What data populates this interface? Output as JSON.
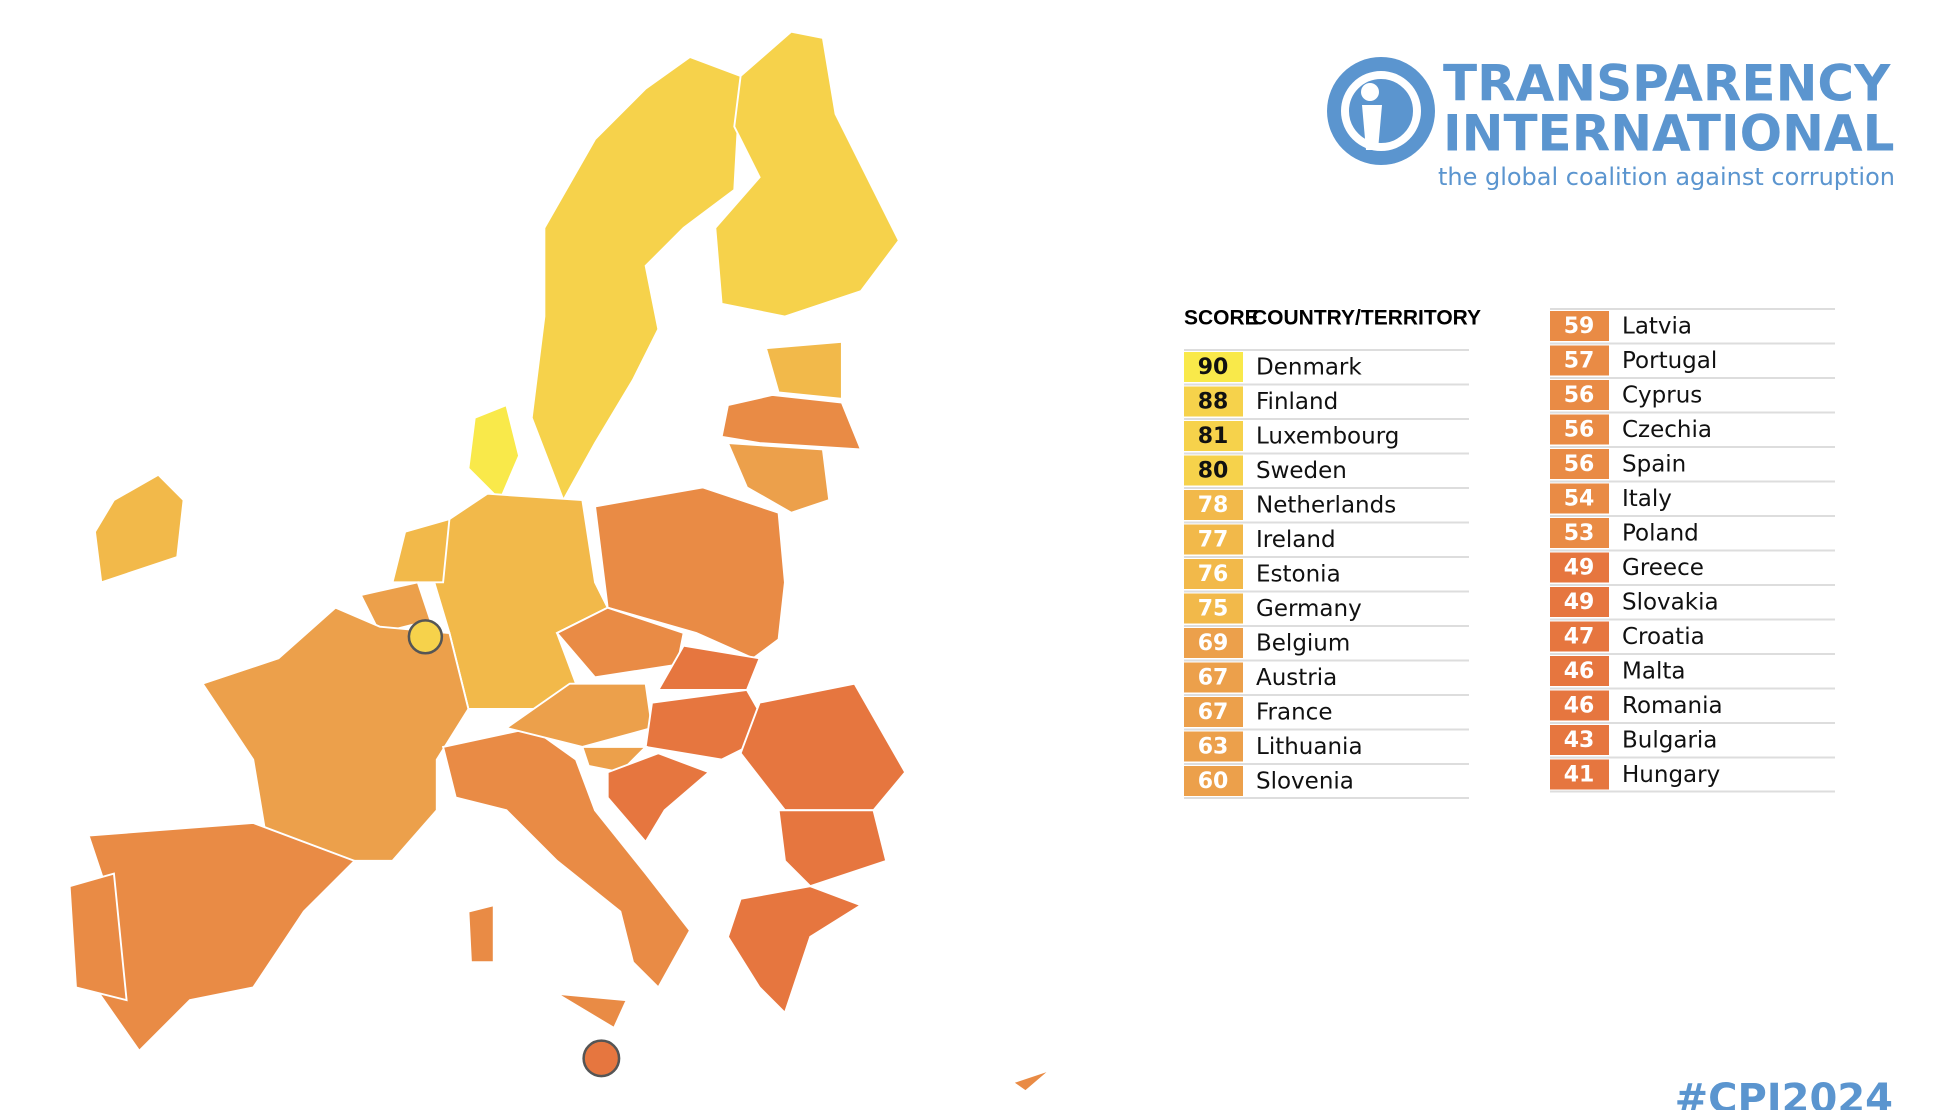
{
  "logo": {
    "line1": "TRANSPARENCY",
    "line2": "INTERNATIONAL",
    "tagline": "the global coalition against corruption"
  },
  "table": {
    "headers": [
      "SCORE",
      "COUNTRY/TERRITORY"
    ],
    "rows": [
      {
        "score": 90,
        "country": "Denmark",
        "color": "#f9e94a"
      },
      {
        "score": 88,
        "country": "Finland",
        "color": "#f6d24b"
      },
      {
        "score": 81,
        "country": "Luxembourg",
        "color": "#f6d24b"
      },
      {
        "score": 80,
        "country": "Sweden",
        "color": "#f6d24b"
      },
      {
        "score": 78,
        "country": "Netherlands",
        "color": "#f2b94a"
      },
      {
        "score": 77,
        "country": "Ireland",
        "color": "#f2b94a"
      },
      {
        "score": 76,
        "country": "Estonia",
        "color": "#f2b94a"
      },
      {
        "score": 75,
        "country": "Germany",
        "color": "#f2b94a"
      },
      {
        "score": 69,
        "country": "Belgium",
        "color": "#eca04b"
      },
      {
        "score": 67,
        "country": "Austria",
        "color": "#eca04b"
      },
      {
        "score": 67,
        "country": "France",
        "color": "#eca04b"
      },
      {
        "score": 63,
        "country": "Lithuania",
        "color": "#eca04b"
      },
      {
        "score": 60,
        "country": "Slovenia",
        "color": "#eca04b"
      },
      {
        "score": 59,
        "country": "Latvia",
        "color": "#e98b45"
      },
      {
        "score": 57,
        "country": "Portugal",
        "color": "#e98b45"
      },
      {
        "score": 56,
        "country": "Cyprus",
        "color": "#e98b45"
      },
      {
        "score": 56,
        "country": "Czechia",
        "color": "#e98b45"
      },
      {
        "score": 56,
        "country": "Spain",
        "color": "#e98b45"
      },
      {
        "score": 54,
        "country": "Italy",
        "color": "#e98b45"
      },
      {
        "score": 53,
        "country": "Poland",
        "color": "#e98b45"
      },
      {
        "score": 49,
        "country": "Greece",
        "color": "#e6763f"
      },
      {
        "score": 49,
        "country": "Slovakia",
        "color": "#e6763f"
      },
      {
        "score": 47,
        "country": "Croatia",
        "color": "#e6763f"
      },
      {
        "score": 46,
        "country": "Malta",
        "color": "#e6763f"
      },
      {
        "score": 46,
        "country": "Romania",
        "color": "#e6763f"
      },
      {
        "score": 43,
        "country": "Bulgaria",
        "color": "#e6763f"
      },
      {
        "score": 41,
        "country": "Hungary",
        "color": "#e6763f"
      }
    ]
  },
  "hashtag": "#CPI2024"
}
